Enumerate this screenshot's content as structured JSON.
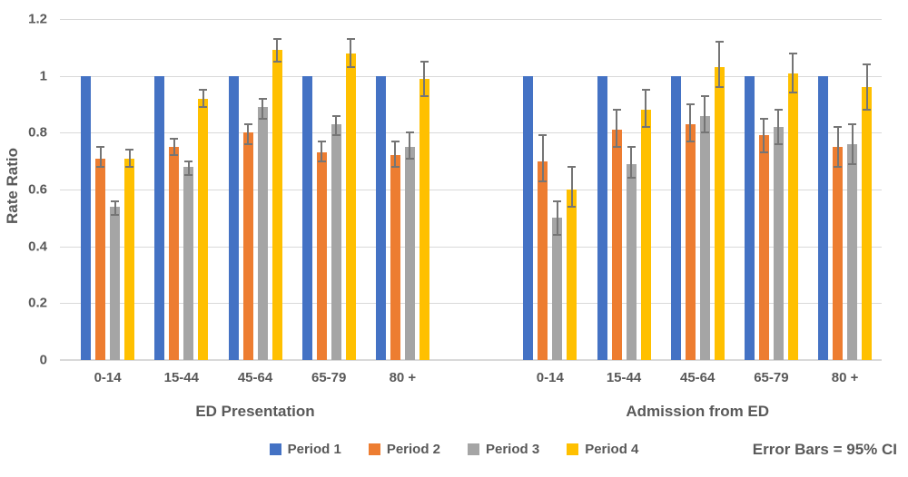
{
  "chart_data": {
    "type": "bar",
    "title": "",
    "ylabel": "Rate Ratio",
    "ylim": [
      0,
      1.2
    ],
    "ytick_values": [
      0,
      0.2,
      0.4,
      0.6,
      0.8,
      1,
      1.2
    ],
    "ytick_labels": [
      "0",
      "0.2",
      "0.4",
      "0.6",
      "0.8",
      "1",
      "1.2"
    ],
    "grid": true,
    "legend_position": "bottom",
    "note": "Error Bars = 95% CI",
    "error_bars": "95% CI",
    "colors": {
      "Period 1": "#4472C4",
      "Period 2": "#ED7D31",
      "Period 3": "#A5A5A5",
      "Period 4": "#FFC000"
    },
    "legend": [
      {
        "label": "Period 1",
        "color": "#4472C4"
      },
      {
        "label": "Period 2",
        "color": "#ED7D31"
      },
      {
        "label": "Period 3",
        "color": "#A5A5A5"
      },
      {
        "label": "Period 4",
        "color": "#FFC000"
      }
    ],
    "groups": [
      {
        "label": "ED Presentation",
        "categories": [
          "0-14",
          "15-44",
          "45-64",
          "65-79",
          "80 +"
        ],
        "series": [
          {
            "name": "Period 1",
            "values": [
              1.0,
              1.0,
              1.0,
              1.0,
              1.0
            ],
            "ci_low": null,
            "ci_high": null
          },
          {
            "name": "Period 2",
            "values": [
              0.71,
              0.75,
              0.8,
              0.73,
              0.72
            ],
            "ci_low": [
              0.68,
              0.72,
              0.76,
              0.7,
              0.68
            ],
            "ci_high": [
              0.75,
              0.78,
              0.83,
              0.77,
              0.77
            ]
          },
          {
            "name": "Period 3",
            "values": [
              0.54,
              0.68,
              0.89,
              0.83,
              0.75
            ],
            "ci_low": [
              0.51,
              0.65,
              0.85,
              0.79,
              0.71
            ],
            "ci_high": [
              0.56,
              0.7,
              0.92,
              0.86,
              0.8
            ]
          },
          {
            "name": "Period 4",
            "values": [
              0.71,
              0.92,
              1.09,
              1.08,
              0.99
            ],
            "ci_low": [
              0.68,
              0.89,
              1.05,
              1.03,
              0.93
            ],
            "ci_high": [
              0.74,
              0.95,
              1.13,
              1.13,
              1.05
            ]
          }
        ]
      },
      {
        "label": "Admission from ED",
        "categories": [
          "0-14",
          "15-44",
          "45-64",
          "65-79",
          "80 +"
        ],
        "series": [
          {
            "name": "Period 1",
            "values": [
              1.0,
              1.0,
              1.0,
              1.0,
              1.0
            ],
            "ci_low": null,
            "ci_high": null
          },
          {
            "name": "Period 2",
            "values": [
              0.7,
              0.81,
              0.83,
              0.79,
              0.75
            ],
            "ci_low": [
              0.63,
              0.75,
              0.77,
              0.73,
              0.68
            ],
            "ci_high": [
              0.79,
              0.88,
              0.9,
              0.85,
              0.82
            ]
          },
          {
            "name": "Period 3",
            "values": [
              0.5,
              0.69,
              0.86,
              0.82,
              0.76
            ],
            "ci_low": [
              0.44,
              0.64,
              0.8,
              0.76,
              0.69
            ],
            "ci_high": [
              0.56,
              0.75,
              0.93,
              0.88,
              0.83
            ]
          },
          {
            "name": "Period 4",
            "values": [
              0.6,
              0.88,
              1.03,
              1.01,
              0.96
            ],
            "ci_low": [
              0.54,
              0.82,
              0.96,
              0.94,
              0.88
            ],
            "ci_high": [
              0.68,
              0.95,
              1.12,
              1.08,
              1.04
            ]
          }
        ]
      }
    ]
  }
}
